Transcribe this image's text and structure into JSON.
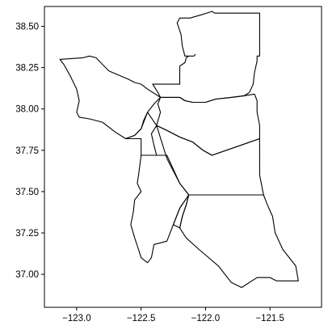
{
  "chart_data": {
    "type": "map",
    "title": "",
    "xlabel": "",
    "ylabel": "",
    "xlim": [
      -123.25,
      -121.1
    ],
    "ylim": [
      36.8,
      38.62
    ],
    "grid": false,
    "legend": "none",
    "x_ticks": [
      {
        "value": -123.0,
        "label": "−123.0"
      },
      {
        "value": -122.5,
        "label": "−122.5"
      },
      {
        "value": -122.0,
        "label": "−122.0"
      },
      {
        "value": -121.5,
        "label": "−121.5"
      }
    ],
    "y_ticks": [
      {
        "value": 37.0,
        "label": "37.00"
      },
      {
        "value": 37.25,
        "label": "37.25"
      },
      {
        "value": 37.5,
        "label": "37.50"
      },
      {
        "value": 37.75,
        "label": "37.75"
      },
      {
        "value": 38.0,
        "label": "38.00"
      },
      {
        "value": 38.25,
        "label": "38.25"
      },
      {
        "value": 38.5,
        "label": "38.50"
      }
    ],
    "edge_color": "#000000",
    "fill_color": "none",
    "regions": [
      {
        "id": "north",
        "points": [
          [
            -122.35,
            38.07
          ],
          [
            -122.2,
            38.07
          ],
          [
            -122.16,
            38.05
          ],
          [
            -122.1,
            38.04
          ],
          [
            -122.0,
            38.04
          ],
          [
            -121.92,
            38.06
          ],
          [
            -121.8,
            38.07
          ],
          [
            -121.7,
            38.08
          ],
          [
            -121.66,
            38.1
          ],
          [
            -121.63,
            38.15
          ],
          [
            -121.62,
            38.22
          ],
          [
            -121.6,
            38.29
          ],
          [
            -121.6,
            38.32
          ],
          [
            -121.58,
            38.32
          ],
          [
            -121.58,
            38.58
          ],
          [
            -121.93,
            38.58
          ],
          [
            -121.95,
            38.59
          ],
          [
            -122.03,
            38.57
          ],
          [
            -122.12,
            38.55
          ],
          [
            -122.2,
            38.55
          ],
          [
            -122.22,
            38.52
          ],
          [
            -122.19,
            38.45
          ],
          [
            -122.18,
            38.38
          ],
          [
            -122.16,
            38.32
          ],
          [
            -122.1,
            38.32
          ],
          [
            -122.1,
            38.32
          ],
          [
            -122.09,
            38.32
          ],
          [
            -122.08,
            38.33
          ],
          [
            -122.09,
            38.32
          ],
          [
            -122.11,
            38.32
          ],
          [
            -122.13,
            38.32
          ],
          [
            -122.15,
            38.31
          ],
          [
            -122.16,
            38.28
          ],
          [
            -122.2,
            38.26
          ],
          [
            -122.2,
            38.15
          ],
          [
            -122.41,
            38.15
          ],
          [
            -122.37,
            38.1
          ],
          [
            -122.35,
            38.07
          ]
        ]
      },
      {
        "id": "northwest",
        "points": [
          [
            -123.13,
            38.3
          ],
          [
            -122.95,
            38.31
          ],
          [
            -122.9,
            38.32
          ],
          [
            -122.85,
            38.31
          ],
          [
            -122.75,
            38.23
          ],
          [
            -122.6,
            38.18
          ],
          [
            -122.55,
            38.16
          ],
          [
            -122.5,
            38.15
          ],
          [
            -122.45,
            38.12
          ],
          [
            -122.35,
            38.07
          ],
          [
            -122.4,
            38.03
          ],
          [
            -122.45,
            37.98
          ],
          [
            -122.48,
            37.93
          ],
          [
            -122.5,
            37.88
          ],
          [
            -122.55,
            37.84
          ],
          [
            -122.62,
            37.82
          ],
          [
            -122.7,
            37.86
          ],
          [
            -122.8,
            37.92
          ],
          [
            -122.9,
            37.94
          ],
          [
            -122.98,
            37.95
          ],
          [
            -123.0,
            37.98
          ],
          [
            -122.98,
            38.05
          ],
          [
            -123.0,
            38.12
          ],
          [
            -123.05,
            38.2
          ],
          [
            -123.1,
            38.27
          ],
          [
            -123.13,
            38.3
          ]
        ]
      },
      {
        "id": "central-east",
        "points": [
          [
            -122.35,
            38.07
          ],
          [
            -122.2,
            38.07
          ],
          [
            -122.16,
            38.05
          ],
          [
            -122.1,
            38.04
          ],
          [
            -122.0,
            38.04
          ],
          [
            -121.92,
            38.06
          ],
          [
            -121.8,
            38.07
          ],
          [
            -121.7,
            38.08
          ],
          [
            -121.62,
            38.09
          ],
          [
            -121.6,
            38.05
          ],
          [
            -121.6,
            37.98
          ],
          [
            -121.58,
            37.9
          ],
          [
            -121.58,
            37.82
          ],
          [
            -121.95,
            37.72
          ],
          [
            -122.02,
            37.75
          ],
          [
            -122.1,
            37.8
          ],
          [
            -122.2,
            37.83
          ],
          [
            -122.3,
            37.87
          ],
          [
            -122.38,
            37.9
          ],
          [
            -122.35,
            37.98
          ],
          [
            -122.37,
            38.03
          ],
          [
            -122.35,
            38.07
          ]
        ]
      },
      {
        "id": "west-central",
        "points": [
          [
            -122.38,
            37.9
          ],
          [
            -122.42,
            37.85
          ],
          [
            -122.4,
            37.78
          ],
          [
            -122.38,
            37.72
          ],
          [
            -122.5,
            37.72
          ],
          [
            -122.5,
            37.82
          ],
          [
            -122.62,
            37.82
          ],
          [
            -122.55,
            37.84
          ],
          [
            -122.5,
            37.88
          ],
          [
            -122.45,
            37.98
          ],
          [
            -122.38,
            37.9
          ]
        ]
      },
      {
        "id": "east-central",
        "points": [
          [
            -121.58,
            37.82
          ],
          [
            -121.95,
            37.72
          ],
          [
            -122.02,
            37.75
          ],
          [
            -122.1,
            37.8
          ],
          [
            -122.2,
            37.83
          ],
          [
            -122.3,
            37.87
          ],
          [
            -122.38,
            37.9
          ],
          [
            -122.3,
            37.7
          ],
          [
            -122.2,
            37.55
          ],
          [
            -122.13,
            37.48
          ],
          [
            -121.55,
            37.48
          ],
          [
            -121.58,
            37.6
          ],
          [
            -121.58,
            37.82
          ]
        ]
      },
      {
        "id": "southwest",
        "points": [
          [
            -122.5,
            37.72
          ],
          [
            -122.3,
            37.72
          ],
          [
            -122.2,
            37.55
          ],
          [
            -122.13,
            37.48
          ],
          [
            -122.2,
            37.4
          ],
          [
            -122.25,
            37.3
          ],
          [
            -122.3,
            37.2
          ],
          [
            -122.4,
            37.18
          ],
          [
            -122.42,
            37.1
          ],
          [
            -122.45,
            37.07
          ],
          [
            -122.5,
            37.1
          ],
          [
            -122.52,
            37.15
          ],
          [
            -122.55,
            37.22
          ],
          [
            -122.58,
            37.3
          ],
          [
            -122.56,
            37.38
          ],
          [
            -122.55,
            37.45
          ],
          [
            -122.5,
            37.5
          ],
          [
            -122.53,
            37.55
          ],
          [
            -122.52,
            37.6
          ],
          [
            -122.5,
            37.72
          ]
        ]
      },
      {
        "id": "peninsula-north",
        "points": [
          [
            -122.38,
            37.72
          ],
          [
            -122.38,
            37.72
          ],
          [
            -122.3,
            37.72
          ],
          [
            -122.5,
            37.72
          ],
          [
            -122.5,
            37.72
          ],
          [
            -122.38,
            37.72
          ]
        ]
      },
      {
        "id": "south",
        "points": [
          [
            -122.13,
            37.48
          ],
          [
            -121.55,
            37.48
          ],
          [
            -121.52,
            37.42
          ],
          [
            -121.48,
            37.35
          ],
          [
            -121.46,
            37.25
          ],
          [
            -121.4,
            37.15
          ],
          [
            -121.3,
            37.05
          ],
          [
            -121.28,
            36.96
          ],
          [
            -121.45,
            36.96
          ],
          [
            -121.5,
            36.98
          ],
          [
            -121.6,
            36.98
          ],
          [
            -121.72,
            36.92
          ],
          [
            -121.8,
            36.95
          ],
          [
            -121.9,
            37.05
          ],
          [
            -122.05,
            37.15
          ],
          [
            -122.15,
            37.22
          ],
          [
            -122.2,
            37.28
          ],
          [
            -122.18,
            37.35
          ],
          [
            -122.15,
            37.42
          ],
          [
            -122.13,
            37.48
          ]
        ]
      },
      {
        "id": "south-west-sliver",
        "points": [
          [
            -122.2,
            37.28
          ],
          [
            -122.25,
            37.3
          ],
          [
            -122.2,
            37.4
          ],
          [
            -122.13,
            37.48
          ],
          [
            -122.15,
            37.42
          ],
          [
            -122.18,
            37.35
          ],
          [
            -122.2,
            37.28
          ]
        ]
      }
    ]
  }
}
